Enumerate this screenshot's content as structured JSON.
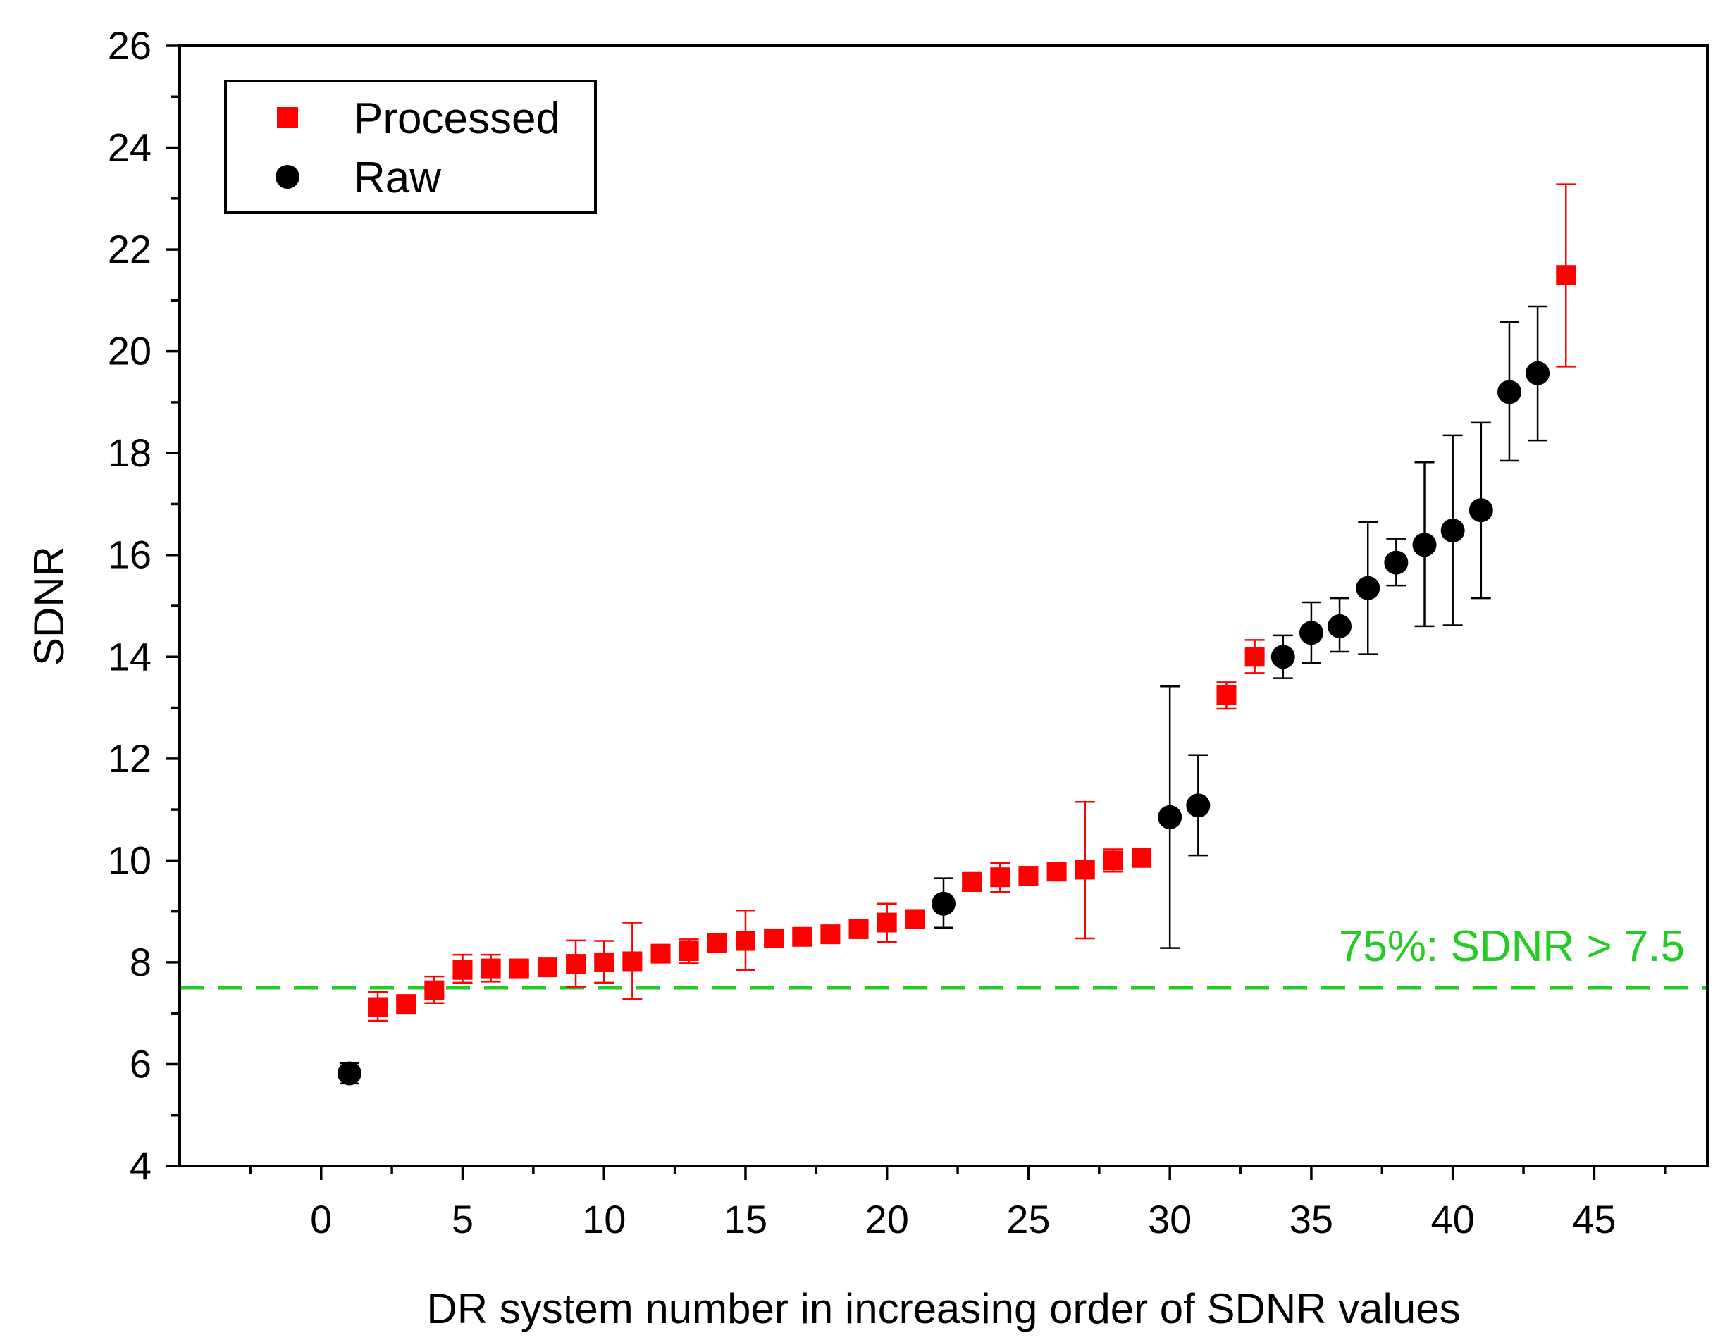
{
  "chart_data": {
    "type": "scatter",
    "title": "",
    "xlabel": "DR system number in increasing order of SDNR values",
    "ylabel": "SDNR",
    "xlim": [
      -5,
      49
    ],
    "ylim": [
      4,
      26
    ],
    "x_ticks": [
      0,
      5,
      10,
      15,
      20,
      25,
      30,
      35,
      40,
      45
    ],
    "x_tick_labels": [
      "0",
      "5",
      "10",
      "15",
      "20",
      "25",
      "30",
      "35",
      "40",
      "45"
    ],
    "y_ticks": [
      4,
      6,
      8,
      10,
      12,
      14,
      16,
      18,
      20,
      22,
      24,
      26
    ],
    "y_tick_labels": [
      "4",
      "6",
      "8",
      "10",
      "12",
      "14",
      "16",
      "18",
      "20",
      "22",
      "24",
      "26"
    ],
    "grid": false,
    "legend": {
      "position": "top-left",
      "entries": [
        {
          "label": "Processed",
          "marker": "square",
          "color": "#ff0000"
        },
        {
          "label": "Raw",
          "marker": "circle",
          "color": "#000000"
        }
      ]
    },
    "threshold": {
      "y": 7.5,
      "color": "#22cc22",
      "style": "dashed",
      "label": "75%: SDNR > 7.5"
    },
    "series": [
      {
        "name": "Processed",
        "marker": "square",
        "color": "#ff0000",
        "points": [
          {
            "x": 2,
            "y": 7.12,
            "lo": 6.85,
            "hi": 7.42
          },
          {
            "x": 3,
            "y": 7.18,
            "lo": 7.05,
            "hi": 7.3
          },
          {
            "x": 4,
            "y": 7.45,
            "lo": 7.2,
            "hi": 7.72
          },
          {
            "x": 5,
            "y": 7.85,
            "lo": 7.6,
            "hi": 8.15
          },
          {
            "x": 6,
            "y": 7.88,
            "lo": 7.62,
            "hi": 8.15
          },
          {
            "x": 7,
            "y": 7.88,
            "lo": 7.75,
            "hi": 8.0
          },
          {
            "x": 8,
            "y": 7.9,
            "lo": 7.78,
            "hi": 8.02
          },
          {
            "x": 9,
            "y": 7.97,
            "lo": 7.52,
            "hi": 8.43
          },
          {
            "x": 10,
            "y": 8.0,
            "lo": 7.6,
            "hi": 8.42
          },
          {
            "x": 11,
            "y": 8.02,
            "lo": 7.28,
            "hi": 8.78
          },
          {
            "x": 12,
            "y": 8.17,
            "lo": 8.05,
            "hi": 8.3
          },
          {
            "x": 13,
            "y": 8.22,
            "lo": 7.98,
            "hi": 8.45
          },
          {
            "x": 14,
            "y": 8.38,
            "lo": 8.2,
            "hi": 8.55
          },
          {
            "x": 15,
            "y": 8.42,
            "lo": 7.85,
            "hi": 9.02
          },
          {
            "x": 16,
            "y": 8.47,
            "lo": 8.35,
            "hi": 8.58
          },
          {
            "x": 17,
            "y": 8.5,
            "lo": 8.38,
            "hi": 8.62
          },
          {
            "x": 18,
            "y": 8.55,
            "lo": 8.43,
            "hi": 8.67
          },
          {
            "x": 19,
            "y": 8.65,
            "lo": 8.53,
            "hi": 8.77
          },
          {
            "x": 20,
            "y": 8.78,
            "lo": 8.4,
            "hi": 9.15
          },
          {
            "x": 21,
            "y": 8.85,
            "lo": 8.73,
            "hi": 8.97
          },
          {
            "x": 23,
            "y": 9.58,
            "lo": 9.4,
            "hi": 9.75
          },
          {
            "x": 24,
            "y": 9.67,
            "lo": 9.38,
            "hi": 9.95
          },
          {
            "x": 25,
            "y": 9.7,
            "lo": 9.58,
            "hi": 9.82
          },
          {
            "x": 26,
            "y": 9.78,
            "lo": 9.66,
            "hi": 9.9
          },
          {
            "x": 27,
            "y": 9.82,
            "lo": 8.47,
            "hi": 11.15
          },
          {
            "x": 28,
            "y": 10.0,
            "lo": 9.78,
            "hi": 10.22
          },
          {
            "x": 29,
            "y": 10.05,
            "lo": 9.93,
            "hi": 10.17
          },
          {
            "x": 32,
            "y": 13.25,
            "lo": 12.98,
            "hi": 13.5
          },
          {
            "x": 33,
            "y": 14.0,
            "lo": 13.68,
            "hi": 14.33
          },
          {
            "x": 44,
            "y": 21.5,
            "lo": 19.7,
            "hi": 23.28
          }
        ]
      },
      {
        "name": "Raw",
        "marker": "circle",
        "color": "#000000",
        "points": [
          {
            "x": 1,
            "y": 5.82,
            "lo": 5.62,
            "hi": 6.02
          },
          {
            "x": 22,
            "y": 9.15,
            "lo": 8.68,
            "hi": 9.65
          },
          {
            "x": 30,
            "y": 10.85,
            "lo": 8.28,
            "hi": 13.42
          },
          {
            "x": 31,
            "y": 11.08,
            "lo": 10.1,
            "hi": 12.07
          },
          {
            "x": 34,
            "y": 14.0,
            "lo": 13.58,
            "hi": 14.42
          },
          {
            "x": 35,
            "y": 14.47,
            "lo": 13.88,
            "hi": 15.07
          },
          {
            "x": 36,
            "y": 14.6,
            "lo": 14.1,
            "hi": 15.15
          },
          {
            "x": 37,
            "y": 15.35,
            "lo": 14.05,
            "hi": 16.65
          },
          {
            "x": 38,
            "y": 15.85,
            "lo": 15.4,
            "hi": 16.32
          },
          {
            "x": 39,
            "y": 16.2,
            "lo": 14.6,
            "hi": 17.82
          },
          {
            "x": 40,
            "y": 16.48,
            "lo": 14.62,
            "hi": 18.35
          },
          {
            "x": 41,
            "y": 16.88,
            "lo": 15.15,
            "hi": 18.6
          },
          {
            "x": 42,
            "y": 19.2,
            "lo": 17.85,
            "hi": 20.58
          },
          {
            "x": 43,
            "y": 19.57,
            "lo": 18.25,
            "hi": 20.88
          }
        ]
      }
    ]
  }
}
